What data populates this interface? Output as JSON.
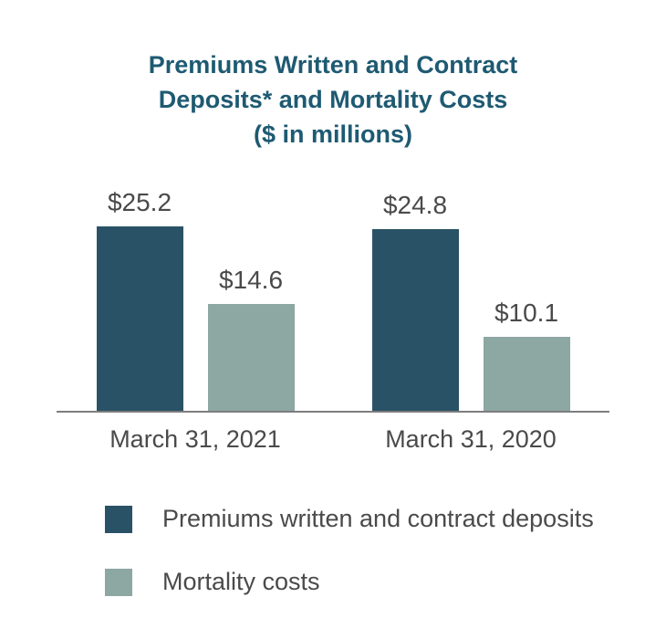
{
  "title": {
    "line1": "Premiums Written and Contract",
    "line2": "Deposits* and Mortality Costs",
    "line3": "($ in millions)"
  },
  "colors": {
    "title_text": "#1E5A72",
    "premiums_bar": "#2A5267",
    "mortality_bar": "#8DA7A3",
    "axis_line": "#7d7d7d",
    "label_text": "#4A4A4A"
  },
  "chart_data": {
    "type": "bar",
    "title": "Premiums Written and Contract Deposits* and Mortality Costs ($ in millions)",
    "categories": [
      "March 31, 2021",
      "March 31, 2020"
    ],
    "series": [
      {
        "name": "Premiums written and contract deposits",
        "color": "#2A5267",
        "values": [
          25.2,
          24.8
        ]
      },
      {
        "name": "Mortality costs",
        "color": "#8DA7A3",
        "values": [
          14.6,
          10.1
        ]
      }
    ],
    "value_labels": {
      "premiums_2021": "$25.2",
      "mortality_2021": "$14.6",
      "premiums_2020": "$24.8",
      "mortality_2020": "$10.1"
    },
    "xlabel": "",
    "ylabel": "",
    "ylim": [
      0,
      25.2
    ],
    "grid": false,
    "legend_position": "bottom-left"
  },
  "legend": {
    "items": [
      {
        "label": "Premiums written and contract deposits"
      },
      {
        "label": "Mortality costs"
      }
    ]
  }
}
